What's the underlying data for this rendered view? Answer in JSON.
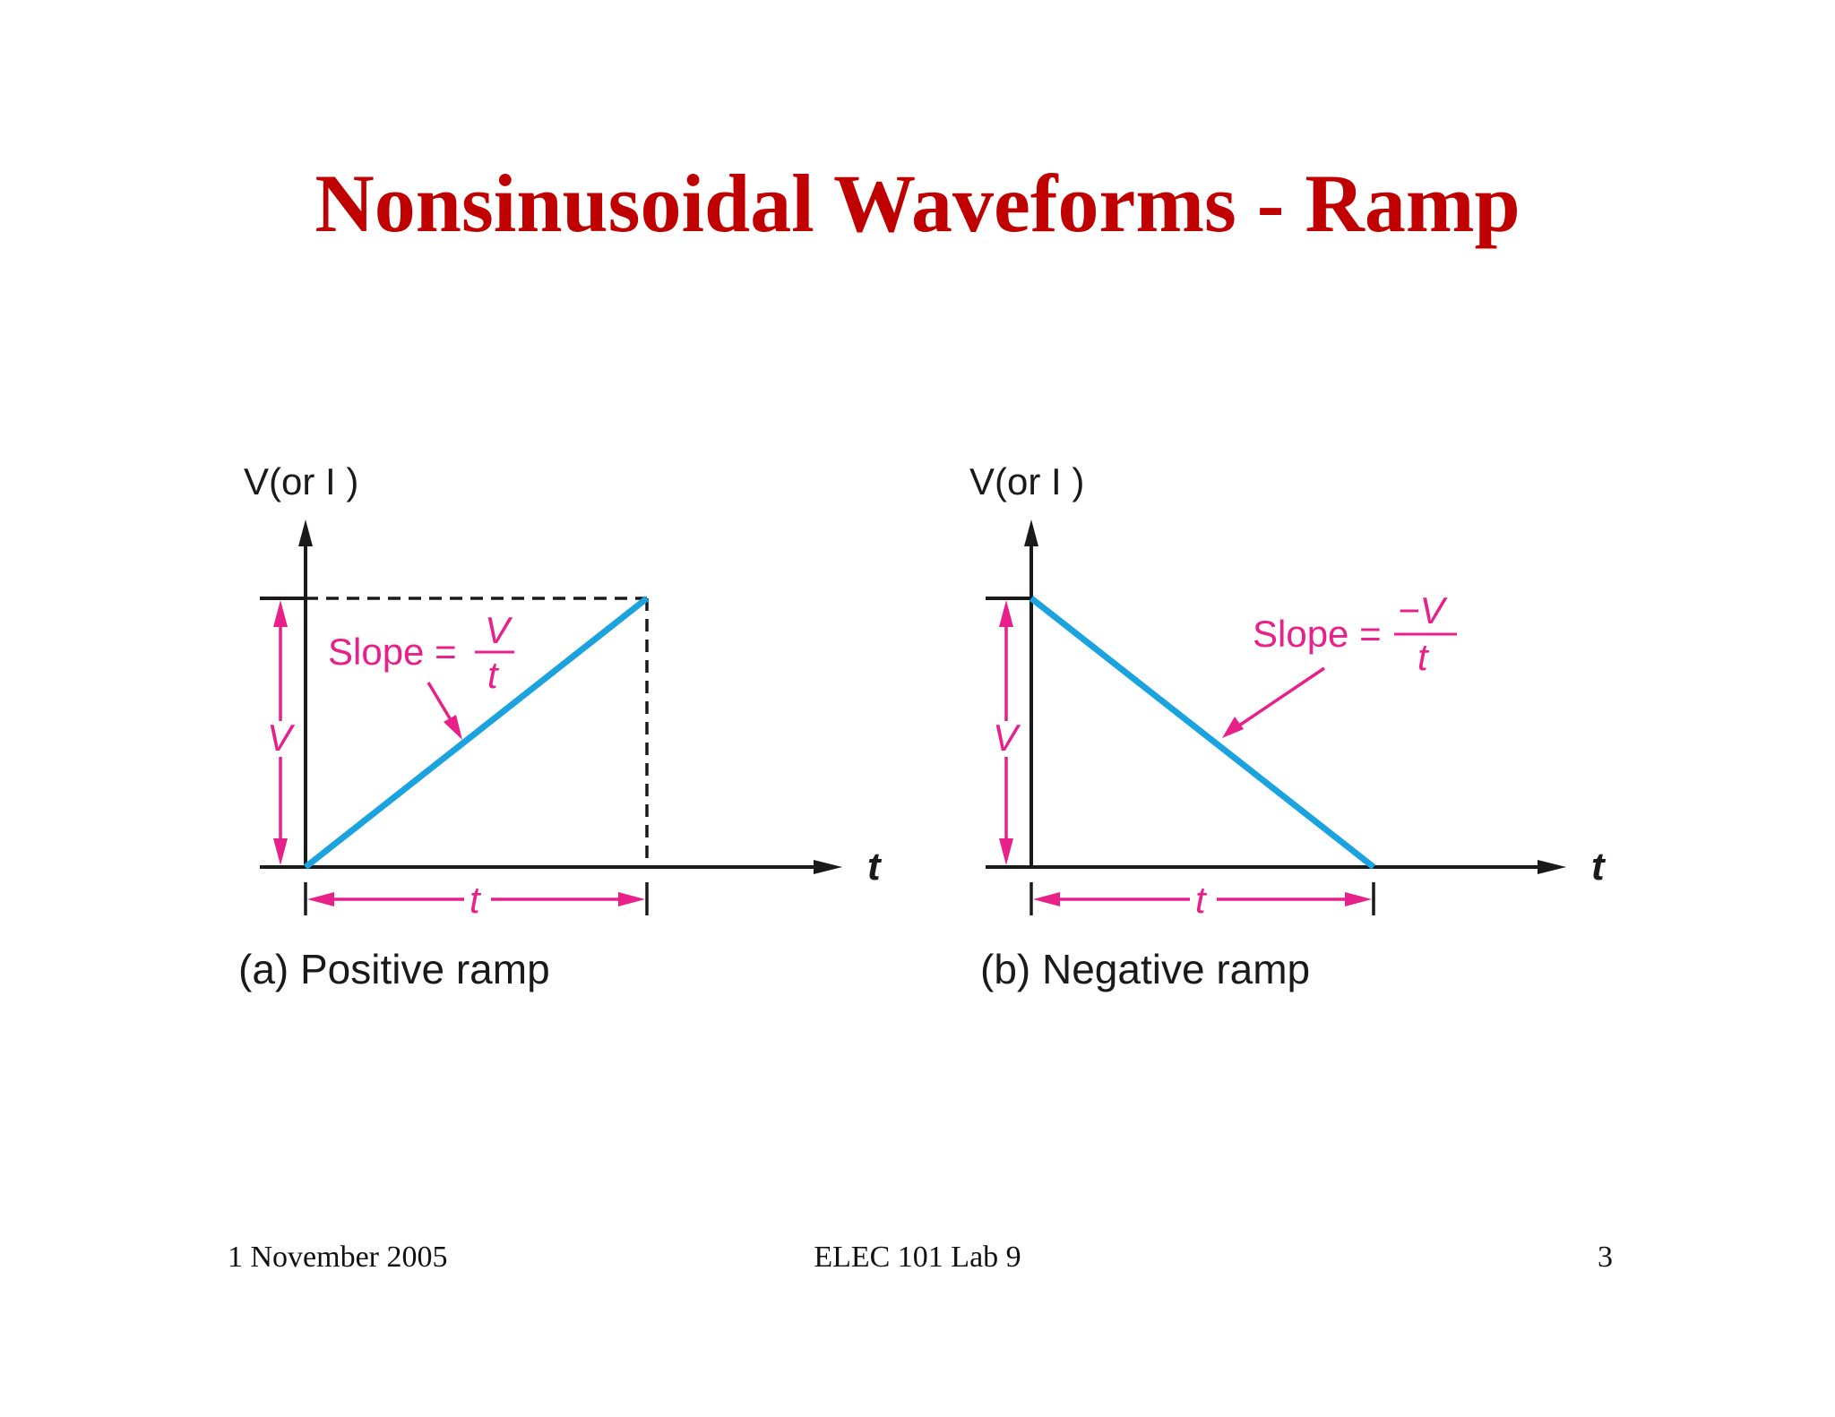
{
  "slide": {
    "title": "Nonsinusoidal Waveforms - Ramp"
  },
  "figure_a": {
    "y_axis_label": "V(or I )",
    "x_axis_label": "t",
    "amplitude_label": "V",
    "duration_label": "t",
    "slope_prefix": "Slope =",
    "slope_numerator": "V",
    "slope_denominator": "t",
    "caption": "(a) Positive ramp",
    "ramp_direction": "positive"
  },
  "figure_b": {
    "y_axis_label": "V(or I )",
    "x_axis_label": "t",
    "amplitude_label": "V",
    "duration_label": "t",
    "slope_prefix": "Slope =",
    "slope_numerator": "−V",
    "slope_denominator": "t",
    "caption": "(b) Negative ramp",
    "ramp_direction": "negative"
  },
  "footer": {
    "date": "1 November 2005",
    "course": "ELEC 101 Lab 9",
    "page_number": "3"
  },
  "colors": {
    "title": "#c00000",
    "ramp_line": "#1ba3e0",
    "annotation": "#e8208a",
    "axes": "#1a1a1a"
  }
}
